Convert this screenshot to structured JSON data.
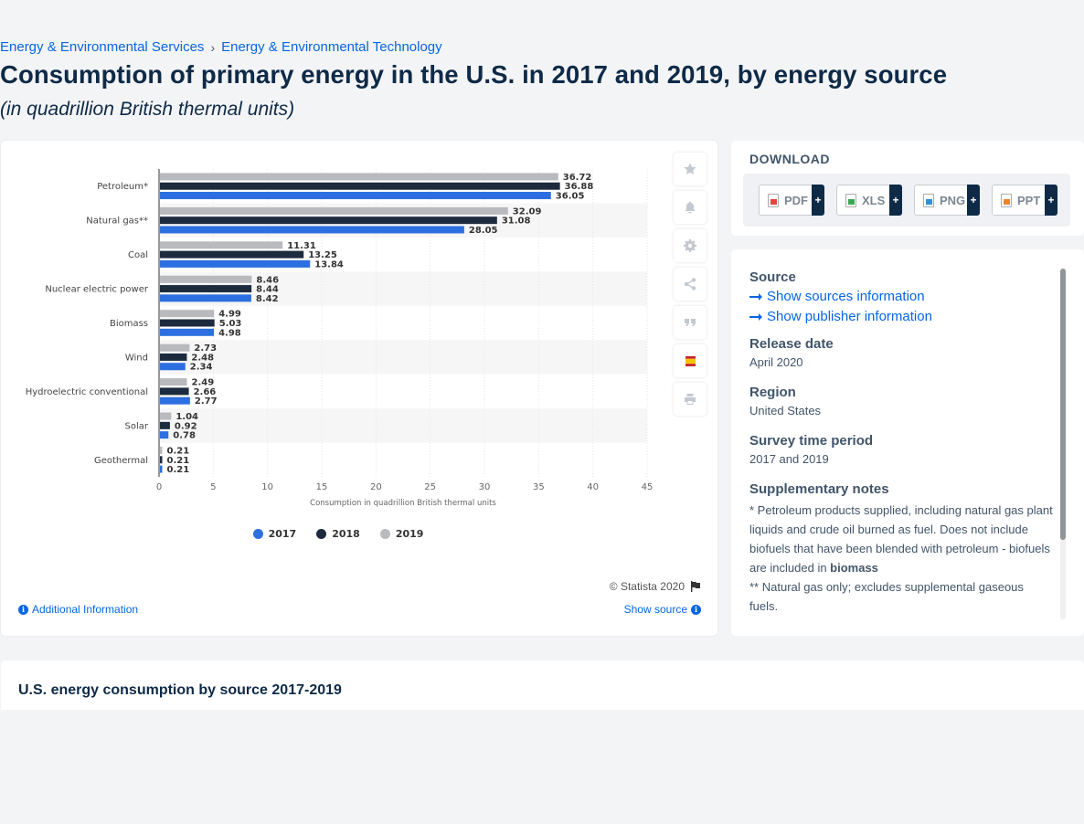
{
  "breadcrumb": [
    "Energy & Environmental Services",
    "Energy & Environmental Technology"
  ],
  "title": "Consumption of primary energy in the U.S. in 2017 and 2019, by energy source",
  "subtitle": "(in quadrillion British thermal units)",
  "chart_data": {
    "type": "bar",
    "orientation": "horizontal",
    "categories": [
      "Petroleum*",
      "Natural gas**",
      "Coal",
      "Nuclear electric power",
      "Biomass",
      "Wind",
      "Hydroelectric conventional",
      "Solar",
      "Geothermal"
    ],
    "series": [
      {
        "name": "2019",
        "color": "#b9babd",
        "values": [
          36.72,
          32.09,
          11.31,
          8.46,
          4.99,
          2.73,
          2.49,
          1.04,
          0.21
        ]
      },
      {
        "name": "2018",
        "color": "#1c2b3e",
        "values": [
          36.88,
          31.08,
          13.25,
          8.44,
          5.03,
          2.48,
          2.66,
          0.92,
          0.21
        ]
      },
      {
        "name": "2017",
        "color": "#2d6fe0",
        "values": [
          36.05,
          28.05,
          13.84,
          8.42,
          4.98,
          2.34,
          2.77,
          0.78,
          0.21
        ]
      }
    ],
    "xlabel": "Consumption in quadrillion British thermal units",
    "xlim": [
      0,
      45
    ],
    "xticks": [
      0,
      5,
      10,
      15,
      20,
      25,
      30,
      35,
      40,
      45
    ],
    "legend_order": [
      "2017",
      "2018",
      "2019"
    ],
    "legend_position": "bottom-center",
    "grid": true
  },
  "copyright": "© Statista 2020",
  "additional_info": "Additional Information",
  "show_source": "Show source",
  "download": {
    "title": "DOWNLOAD",
    "buttons": [
      {
        "label": "PDF",
        "icon": "pdf-file-icon"
      },
      {
        "label": "XLS",
        "icon": "xls-file-icon"
      },
      {
        "label": "PNG",
        "icon": "png-file-icon"
      },
      {
        "label": "PPT",
        "icon": "ppt-file-icon"
      }
    ],
    "plus": "+"
  },
  "source": {
    "source_heading": "Source",
    "show_sources": "Show sources information",
    "show_publisher": "Show publisher information",
    "release_heading": "Release date",
    "release_value": "April 2020",
    "region_heading": "Region",
    "region_value": "United States",
    "period_heading": "Survey time period",
    "period_value": "2017 and 2019",
    "notes_heading": "Supplementary notes",
    "note1": "* Petroleum products supplied, including natural gas plant liquids and crude oil burned as fuel. Does not include biofuels that have been blended with petroleum - biofuels are included in ",
    "note1_bold": "biomass",
    "note2": "** Natural gas only; excludes supplemental gaseous fuels."
  },
  "bottom_title": "U.S. energy consumption by source 2017-2019"
}
